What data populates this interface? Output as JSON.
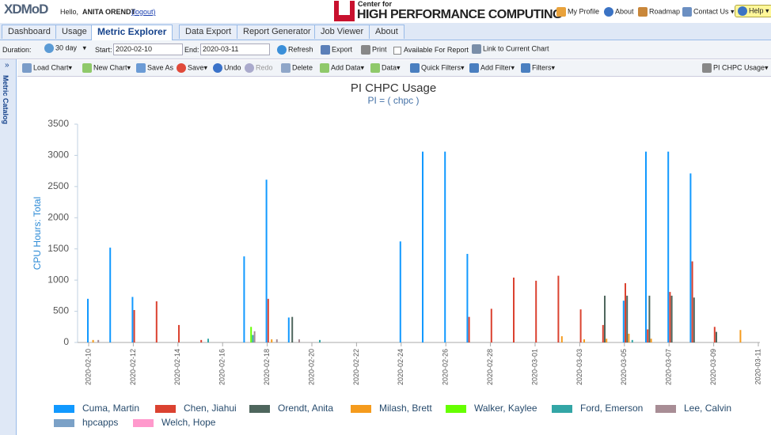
{
  "header": {
    "logo": "XDMoD",
    "greeting": "Hello,",
    "user": "ANITA ORENDT",
    "logout": "(logout)",
    "center_small": "Center for",
    "center_big": "HIGH PERFORMANCE COMPUTING",
    "links": [
      "My Profile",
      "About",
      "Roadmap",
      "Contact Us",
      "Help"
    ]
  },
  "tabs": [
    "Dashboard",
    "Usage",
    "Metric Explorer",
    "Data Export",
    "Report Generator",
    "Job Viewer",
    "About"
  ],
  "toolbar": {
    "duration_label": "Duration:",
    "duration": "30 day",
    "start_label": "Start:",
    "start": "2020-02-10",
    "end_label": "End:",
    "end": "2020-03-11",
    "refresh": "Refresh",
    "export": "Export",
    "print": "Print",
    "checkbox": "Available For Report",
    "link": "Link to Current Chart"
  },
  "chart_toolbar": [
    "Load Chart",
    "New Chart",
    "Save As",
    "Save",
    "Undo",
    "Redo",
    "Delete",
    "Add Data",
    "Data",
    "Quick Filters",
    "Add Filter",
    "Filters"
  ],
  "chart_menu": "PI CHPC Usage",
  "side_panel": "Metric Catalog",
  "chart_data": {
    "type": "bar",
    "title": "PI CHPC Usage",
    "subtitle": "PI = ( chpc )",
    "y_label": "CPU Hours: Total",
    "categories": [
      "2020-02-10",
      null,
      "2020-02-12",
      null,
      "2020-02-14",
      null,
      "2020-02-16",
      null,
      "2020-02-18",
      null,
      "2020-02-20",
      null,
      "2020-02-22",
      null,
      "2020-02-24",
      null,
      "2020-02-26",
      null,
      "2020-02-28",
      null,
      "2020-03-01",
      null,
      "2020-03-03",
      null,
      "2020-03-05",
      null,
      "2020-03-07",
      null,
      "2020-03-09",
      null,
      "2020-03-11"
    ],
    "ylim": [
      0,
      3500
    ],
    "yticks": [
      0,
      500,
      1000,
      1500,
      2000,
      2500,
      3000,
      3500
    ],
    "series": [
      {
        "name": "Cuma, Martin",
        "color": "#1199ff",
        "values": [
          700,
          1520,
          730,
          0,
          0,
          0,
          0,
          1380,
          2610,
          400,
          0,
          0,
          0,
          0,
          1620,
          3060,
          3060,
          1420,
          0,
          0,
          0,
          0,
          0,
          0,
          670,
          3060,
          3060,
          2710,
          0,
          0,
          0
        ]
      },
      {
        "name": "Chen, Jiahui",
        "color": "#db4230",
        "values": [
          0,
          0,
          520,
          660,
          280,
          40,
          0,
          0,
          700,
          0,
          0,
          0,
          0,
          0,
          0,
          0,
          0,
          410,
          540,
          1040,
          990,
          1070,
          530,
          280,
          950,
          210,
          810,
          1300,
          250,
          0,
          0
        ]
      },
      {
        "name": "Orendt, Anita",
        "color": "#4e665d",
        "values": [
          0,
          0,
          0,
          0,
          0,
          0,
          0,
          0,
          0,
          410,
          0,
          0,
          0,
          0,
          0,
          0,
          0,
          0,
          0,
          0,
          0,
          0,
          0,
          750,
          750,
          750,
          750,
          720,
          170,
          0,
          0
        ]
      },
      {
        "name": "Milash, Brett",
        "color": "#f59b1d",
        "values": [
          40,
          0,
          0,
          0,
          0,
          0,
          0,
          0,
          50,
          0,
          0,
          0,
          0,
          0,
          0,
          0,
          0,
          0,
          0,
          0,
          0,
          100,
          50,
          60,
          140,
          60,
          0,
          0,
          0,
          200,
          0
        ]
      },
      {
        "name": "Walker, Kaylee",
        "color": "#66ff00",
        "values": [
          0,
          0,
          0,
          0,
          0,
          0,
          0,
          250,
          0,
          0,
          0,
          0,
          0,
          0,
          0,
          0,
          0,
          0,
          0,
          0,
          0,
          0,
          0,
          0,
          0,
          0,
          0,
          0,
          0,
          0,
          0
        ]
      },
      {
        "name": "Ford, Emerson",
        "color": "#33a6a6",
        "values": [
          0,
          0,
          0,
          0,
          0,
          60,
          0,
          120,
          0,
          0,
          40,
          0,
          0,
          0,
          0,
          0,
          0,
          0,
          0,
          0,
          0,
          0,
          0,
          0,
          40,
          0,
          0,
          0,
          0,
          0,
          0
        ]
      },
      {
        "name": "Lee, Calvin",
        "color": "#a88d95",
        "values": [
          40,
          0,
          0,
          0,
          0,
          0,
          0,
          180,
          50,
          50,
          0,
          0,
          0,
          0,
          0,
          0,
          0,
          0,
          0,
          0,
          0,
          0,
          0,
          0,
          0,
          0,
          0,
          0,
          0,
          0,
          0
        ]
      },
      {
        "name": "hpcapps",
        "color": "#7ba1c7",
        "values": [
          0,
          0,
          0,
          0,
          0,
          0,
          0,
          0,
          0,
          0,
          0,
          0,
          0,
          0,
          0,
          0,
          0,
          0,
          0,
          0,
          0,
          0,
          0,
          0,
          0,
          0,
          0,
          0,
          0,
          0,
          0
        ]
      },
      {
        "name": "Welch, Hope",
        "color": "#ff99cc",
        "values": [
          0,
          0,
          0,
          0,
          0,
          0,
          0,
          0,
          0,
          0,
          0,
          0,
          0,
          0,
          0,
          0,
          0,
          0,
          0,
          0,
          0,
          0,
          0,
          0,
          0,
          0,
          0,
          0,
          0,
          0,
          0
        ]
      }
    ]
  }
}
